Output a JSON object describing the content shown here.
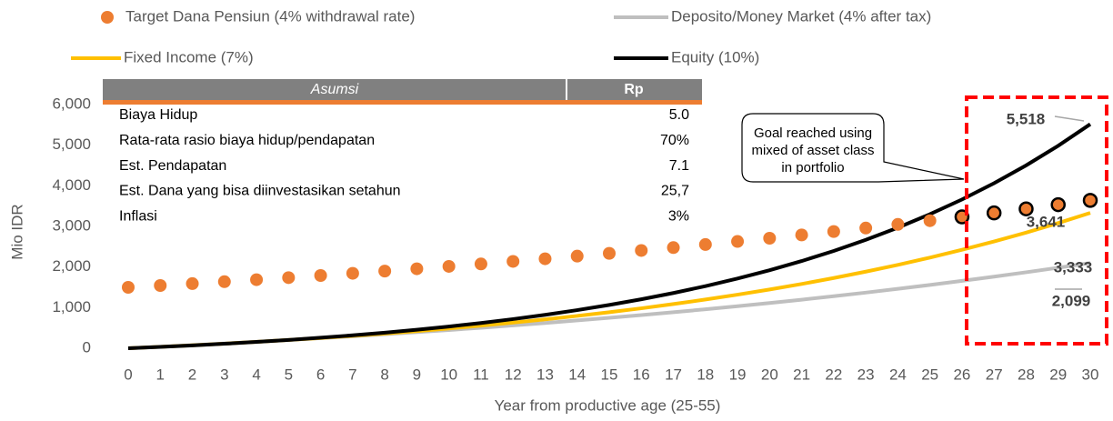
{
  "chart_data": {
    "type": "line",
    "x_label": "Year from productive age (25-55)",
    "y_label": "Mio IDR",
    "categories": [
      "0",
      "1",
      "2",
      "3",
      "4",
      "5",
      "6",
      "7",
      "8",
      "9",
      "10",
      "11",
      "12",
      "13",
      "14",
      "15",
      "16",
      "17",
      "18",
      "19",
      "20",
      "21",
      "22",
      "23",
      "24",
      "25",
      "26",
      "27",
      "28",
      "29",
      "30"
    ],
    "ylim": [
      0,
      6000
    ],
    "yticks": [
      0,
      {
        "value": 1000,
        "label": "1,000"
      },
      {
        "value": 2000,
        "label": "2,000"
      },
      {
        "value": 3000,
        "label": "3,000"
      },
      {
        "value": 4000,
        "label": "4,000"
      },
      {
        "value": 5000,
        "label": "5,000"
      },
      {
        "value": 6000,
        "label": "6,000"
      }
    ],
    "series": [
      {
        "name": "Target Dana Pensiun (4% withdrawal rate)",
        "type": "scatter",
        "color": "#ed7d31",
        "values": [
          1500,
          1545,
          1591,
          1639,
          1688,
          1739,
          1791,
          1845,
          1900,
          1957,
          2016,
          2076,
          2139,
          2203,
          2269,
          2337,
          2407,
          2479,
          2554,
          2630,
          2709,
          2790,
          2874,
          2960,
          3049,
          3141,
          3235,
          3332,
          3432,
          3535,
          3641
        ],
        "value_labels": [
          null,
          null,
          null,
          null,
          null,
          null,
          null,
          null,
          null,
          null,
          null,
          null,
          null,
          null,
          null,
          null,
          null,
          null,
          null,
          null,
          null,
          null,
          null,
          null,
          null,
          null,
          null,
          null,
          null,
          null,
          "3,641"
        ]
      },
      {
        "name": "Deposito/Money Market (4% after tax)",
        "type": "line",
        "color": "#bfbfbf",
        "values": [
          0,
          37,
          76,
          117,
          159,
          203,
          248,
          295,
          344,
          396,
          449,
          505,
          562,
          622,
          685,
          749,
          817,
          887,
          959,
          1035,
          1114,
          1196,
          1282,
          1370,
          1463,
          1559,
          1659,
          1763,
          1871,
          1983,
          2099
        ],
        "value_labels": [
          null,
          null,
          null,
          null,
          null,
          null,
          null,
          null,
          null,
          null,
          null,
          null,
          null,
          null,
          null,
          null,
          null,
          null,
          null,
          null,
          null,
          null,
          null,
          null,
          null,
          null,
          null,
          null,
          null,
          null,
          "2,099"
        ]
      },
      {
        "name": "Fixed Income (7%)",
        "type": "line",
        "color": "#ffc000",
        "values": [
          0,
          35,
          73,
          113,
          157,
          203,
          252,
          305,
          362,
          423,
          488,
          557,
          631,
          711,
          796,
          887,
          984,
          1088,
          1200,
          1319,
          1447,
          1583,
          1729,
          1886,
          2053,
          2232,
          2424,
          2628,
          2847,
          3082,
          3333
        ],
        "value_labels": [
          null,
          null,
          null,
          null,
          null,
          null,
          null,
          null,
          null,
          null,
          null,
          null,
          null,
          null,
          null,
          null,
          null,
          null,
          null,
          null,
          null,
          null,
          null,
          null,
          null,
          null,
          null,
          null,
          null,
          null,
          "3,333"
        ]
      },
      {
        "name": "Equity (10%)",
        "type": "line",
        "color": "#000000",
        "values": [
          0,
          34,
          70,
          111,
          156,
          205,
          259,
          318,
          383,
          455,
          535,
          622,
          718,
          823,
          939,
          1066,
          1206,
          1360,
          1530,
          1716,
          1921,
          2147,
          2396,
          2669,
          2969,
          3300,
          3663,
          4063,
          4503,
          4986,
          5518
        ],
        "value_labels": [
          null,
          null,
          null,
          null,
          null,
          null,
          null,
          null,
          null,
          null,
          null,
          null,
          null,
          null,
          null,
          null,
          null,
          null,
          null,
          null,
          null,
          null,
          null,
          null,
          null,
          null,
          null,
          null,
          null,
          null,
          "5,518"
        ]
      }
    ],
    "table": {
      "header": [
        "Asumsi",
        "Rp"
      ],
      "rows": [
        [
          "Biaya Hidup",
          "5.0"
        ],
        [
          "Rata-rata rasio biaya hidup/pendapatan",
          "70%"
        ],
        [
          "Est. Pendapatan",
          "7.1"
        ],
        [
          "Est. Dana yang bisa diinvestasikan setahun",
          "25,7"
        ],
        [
          "Inflasi",
          "3%"
        ]
      ]
    },
    "annotation": [
      "Goal reached using",
      "mixed of asset class",
      "in portfolio"
    ]
  }
}
